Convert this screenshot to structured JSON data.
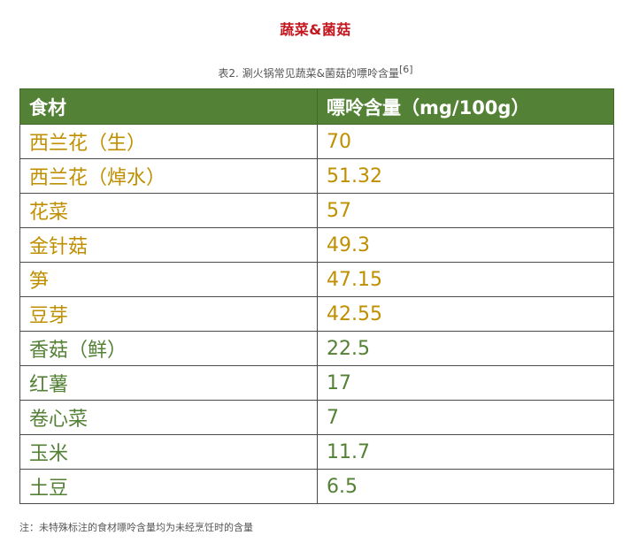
{
  "section_title": "蔬菜&菌菇",
  "caption": {
    "text": "表2. 涮火锅常见蔬菜&菌菇的嘌呤含量",
    "ref": "[6]"
  },
  "table": {
    "headers": [
      "食材",
      "嘌呤含量（mg/100g）"
    ],
    "rows": [
      {
        "food": "西兰花（生）",
        "value": "70",
        "tone": "hi"
      },
      {
        "food": "西兰花（焯水）",
        "value": "51.32",
        "tone": "hi"
      },
      {
        "food": "花菜",
        "value": "57",
        "tone": "hi"
      },
      {
        "food": "金针菇",
        "value": "49.3",
        "tone": "hi"
      },
      {
        "food": "笋",
        "value": "47.15",
        "tone": "hi"
      },
      {
        "food": "豆芽",
        "value": "42.55",
        "tone": "hi"
      },
      {
        "food": "香菇（鲜）",
        "value": "22.5",
        "tone": "lo"
      },
      {
        "food": "红薯",
        "value": "17",
        "tone": "lo"
      },
      {
        "food": "卷心菜",
        "value": "7",
        "tone": "lo"
      },
      {
        "food": "玉米",
        "value": "11.7",
        "tone": "lo"
      },
      {
        "food": "土豆",
        "value": "6.5",
        "tone": "lo"
      }
    ]
  },
  "footnote": "注：未特殊标注的食材嘌呤含量均为未经烹饪时的含量",
  "colors": {
    "title_red": "#c3161e",
    "header_green": "#538135",
    "high_purine_gold": "#bf8f00",
    "low_purine_green": "#538135"
  }
}
